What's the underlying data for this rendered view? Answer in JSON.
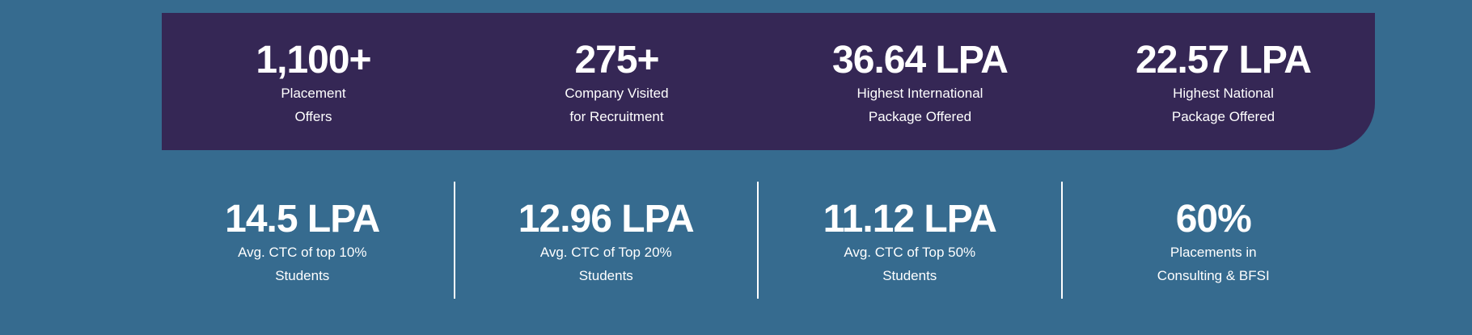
{
  "top_stats": [
    {
      "value": "1,100+",
      "label_line1": "Placement",
      "label_line2": "Offers"
    },
    {
      "value": "275+",
      "label_line1": "Company Visited",
      "label_line2": "for Recruitment"
    },
    {
      "value": "36.64 LPA",
      "label_line1": "Highest International",
      "label_line2": "Package Offered"
    },
    {
      "value": "22.57 LPA",
      "label_line1": "Highest National",
      "label_line2": "Package Offered"
    }
  ],
  "bottom_stats": [
    {
      "value": "14.5 LPA",
      "label_line1": "Avg. CTC of top 10%",
      "label_line2": "Students"
    },
    {
      "value": "12.96 LPA",
      "label_line1": "Avg. CTC of Top 20%",
      "label_line2": "Students"
    },
    {
      "value": "11.12 LPA",
      "label_line1": "Avg. CTC of Top 50%",
      "label_line2": "Students"
    },
    {
      "value": "60%",
      "label_line1": "Placements in",
      "label_line2": "Consulting & BFSI"
    }
  ],
  "colors": {
    "page_background": "#366b8f",
    "panel_background": "#352755",
    "text": "#ffffff",
    "divider": "#ffffff"
  }
}
